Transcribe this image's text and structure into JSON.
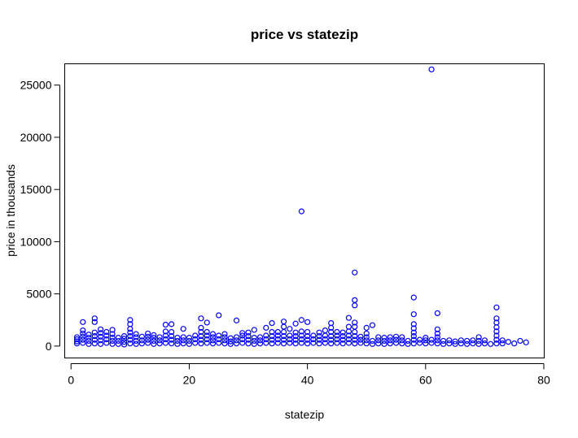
{
  "chart_data": {
    "type": "scatter",
    "title": "price vs statezip",
    "xlabel": "statezip",
    "ylabel": "price in thousands",
    "xlim": [
      -1,
      80
    ],
    "ylim": [
      -1100,
      27000
    ],
    "xticks": [
      0,
      20,
      40,
      60,
      80
    ],
    "yticks": [
      0,
      5000,
      10000,
      15000,
      20000,
      25000
    ],
    "xtick_labels": [
      "0",
      "20",
      "40",
      "60",
      "80"
    ],
    "ytick_labels": [
      "0",
      "5000",
      "10000",
      "15000",
      "20000",
      "25000"
    ],
    "grid": false,
    "legend": "none",
    "point_color": "#0000ff",
    "points": [
      {
        "x": 1,
        "y": 250
      },
      {
        "x": 1,
        "y": 450
      },
      {
        "x": 1,
        "y": 650
      },
      {
        "x": 1,
        "y": 850
      },
      {
        "x": 2,
        "y": 300
      },
      {
        "x": 2,
        "y": 600
      },
      {
        "x": 2,
        "y": 900
      },
      {
        "x": 2,
        "y": 1200
      },
      {
        "x": 2,
        "y": 1500
      },
      {
        "x": 2,
        "y": 2300
      },
      {
        "x": 3,
        "y": 200
      },
      {
        "x": 3,
        "y": 500
      },
      {
        "x": 3,
        "y": 800
      },
      {
        "x": 3,
        "y": 1100
      },
      {
        "x": 4,
        "y": 250
      },
      {
        "x": 4,
        "y": 600
      },
      {
        "x": 4,
        "y": 950
      },
      {
        "x": 4,
        "y": 1300
      },
      {
        "x": 4,
        "y": 2300
      },
      {
        "x": 4,
        "y": 2650
      },
      {
        "x": 5,
        "y": 200
      },
      {
        "x": 5,
        "y": 550
      },
      {
        "x": 5,
        "y": 900
      },
      {
        "x": 5,
        "y": 1250
      },
      {
        "x": 5,
        "y": 1600
      },
      {
        "x": 6,
        "y": 300
      },
      {
        "x": 6,
        "y": 650
      },
      {
        "x": 6,
        "y": 1000
      },
      {
        "x": 6,
        "y": 1350
      },
      {
        "x": 7,
        "y": 200
      },
      {
        "x": 7,
        "y": 500
      },
      {
        "x": 7,
        "y": 800
      },
      {
        "x": 7,
        "y": 1150
      },
      {
        "x": 7,
        "y": 1550
      },
      {
        "x": 8,
        "y": 200
      },
      {
        "x": 8,
        "y": 500
      },
      {
        "x": 8,
        "y": 800
      },
      {
        "x": 9,
        "y": 150
      },
      {
        "x": 9,
        "y": 400
      },
      {
        "x": 9,
        "y": 700
      },
      {
        "x": 9,
        "y": 950
      },
      {
        "x": 10,
        "y": 250
      },
      {
        "x": 10,
        "y": 600
      },
      {
        "x": 10,
        "y": 950
      },
      {
        "x": 10,
        "y": 1300
      },
      {
        "x": 10,
        "y": 1650
      },
      {
        "x": 10,
        "y": 2100
      },
      {
        "x": 10,
        "y": 2500
      },
      {
        "x": 11,
        "y": 200
      },
      {
        "x": 11,
        "y": 500
      },
      {
        "x": 11,
        "y": 850
      },
      {
        "x": 11,
        "y": 1150
      },
      {
        "x": 12,
        "y": 250
      },
      {
        "x": 12,
        "y": 550
      },
      {
        "x": 12,
        "y": 900
      },
      {
        "x": 13,
        "y": 300
      },
      {
        "x": 13,
        "y": 600
      },
      {
        "x": 13,
        "y": 900
      },
      {
        "x": 13,
        "y": 1200
      },
      {
        "x": 14,
        "y": 200
      },
      {
        "x": 14,
        "y": 500
      },
      {
        "x": 14,
        "y": 800
      },
      {
        "x": 14,
        "y": 1050
      },
      {
        "x": 15,
        "y": 250
      },
      {
        "x": 15,
        "y": 550
      },
      {
        "x": 15,
        "y": 850
      },
      {
        "x": 16,
        "y": 300
      },
      {
        "x": 16,
        "y": 650
      },
      {
        "x": 16,
        "y": 1000
      },
      {
        "x": 16,
        "y": 1400
      },
      {
        "x": 16,
        "y": 2050
      },
      {
        "x": 17,
        "y": 250
      },
      {
        "x": 17,
        "y": 600
      },
      {
        "x": 17,
        "y": 950
      },
      {
        "x": 17,
        "y": 1350
      },
      {
        "x": 17,
        "y": 2100
      },
      {
        "x": 18,
        "y": 200
      },
      {
        "x": 18,
        "y": 500
      },
      {
        "x": 18,
        "y": 800
      },
      {
        "x": 19,
        "y": 250
      },
      {
        "x": 19,
        "y": 550
      },
      {
        "x": 19,
        "y": 850
      },
      {
        "x": 19,
        "y": 1650
      },
      {
        "x": 20,
        "y": 200
      },
      {
        "x": 20,
        "y": 500
      },
      {
        "x": 20,
        "y": 800
      },
      {
        "x": 21,
        "y": 300
      },
      {
        "x": 21,
        "y": 650
      },
      {
        "x": 21,
        "y": 1000
      },
      {
        "x": 22,
        "y": 250
      },
      {
        "x": 22,
        "y": 600
      },
      {
        "x": 22,
        "y": 950
      },
      {
        "x": 22,
        "y": 1350
      },
      {
        "x": 22,
        "y": 1750
      },
      {
        "x": 22,
        "y": 2650
      },
      {
        "x": 23,
        "y": 300
      },
      {
        "x": 23,
        "y": 650
      },
      {
        "x": 23,
        "y": 1000
      },
      {
        "x": 23,
        "y": 1350
      },
      {
        "x": 23,
        "y": 2250
      },
      {
        "x": 24,
        "y": 250
      },
      {
        "x": 24,
        "y": 550
      },
      {
        "x": 24,
        "y": 850
      },
      {
        "x": 24,
        "y": 1150
      },
      {
        "x": 25,
        "y": 300
      },
      {
        "x": 25,
        "y": 650
      },
      {
        "x": 25,
        "y": 1000
      },
      {
        "x": 25,
        "y": 2950
      },
      {
        "x": 26,
        "y": 250
      },
      {
        "x": 26,
        "y": 550
      },
      {
        "x": 26,
        "y": 850
      },
      {
        "x": 26,
        "y": 1150
      },
      {
        "x": 27,
        "y": 200
      },
      {
        "x": 27,
        "y": 450
      },
      {
        "x": 27,
        "y": 750
      },
      {
        "x": 28,
        "y": 250
      },
      {
        "x": 28,
        "y": 550
      },
      {
        "x": 28,
        "y": 850
      },
      {
        "x": 28,
        "y": 2450
      },
      {
        "x": 29,
        "y": 300
      },
      {
        "x": 29,
        "y": 650
      },
      {
        "x": 29,
        "y": 1000
      },
      {
        "x": 29,
        "y": 1250
      },
      {
        "x": 30,
        "y": 250
      },
      {
        "x": 30,
        "y": 600
      },
      {
        "x": 30,
        "y": 950
      },
      {
        "x": 30,
        "y": 1300
      },
      {
        "x": 31,
        "y": 200
      },
      {
        "x": 31,
        "y": 500
      },
      {
        "x": 31,
        "y": 800
      },
      {
        "x": 31,
        "y": 1550
      },
      {
        "x": 32,
        "y": 250
      },
      {
        "x": 32,
        "y": 550
      },
      {
        "x": 32,
        "y": 850
      },
      {
        "x": 33,
        "y": 300
      },
      {
        "x": 33,
        "y": 650
      },
      {
        "x": 33,
        "y": 1000
      },
      {
        "x": 33,
        "y": 1750
      },
      {
        "x": 34,
        "y": 250
      },
      {
        "x": 34,
        "y": 600
      },
      {
        "x": 34,
        "y": 950
      },
      {
        "x": 34,
        "y": 1350
      },
      {
        "x": 34,
        "y": 2200
      },
      {
        "x": 35,
        "y": 300
      },
      {
        "x": 35,
        "y": 650
      },
      {
        "x": 35,
        "y": 1000
      },
      {
        "x": 35,
        "y": 1350
      },
      {
        "x": 36,
        "y": 250
      },
      {
        "x": 36,
        "y": 600
      },
      {
        "x": 36,
        "y": 950
      },
      {
        "x": 36,
        "y": 1350
      },
      {
        "x": 36,
        "y": 1850
      },
      {
        "x": 36,
        "y": 2350
      },
      {
        "x": 37,
        "y": 300
      },
      {
        "x": 37,
        "y": 650
      },
      {
        "x": 37,
        "y": 1000
      },
      {
        "x": 37,
        "y": 1650
      },
      {
        "x": 38,
        "y": 250
      },
      {
        "x": 38,
        "y": 600
      },
      {
        "x": 38,
        "y": 950
      },
      {
        "x": 38,
        "y": 1300
      },
      {
        "x": 38,
        "y": 2150
      },
      {
        "x": 39,
        "y": 300
      },
      {
        "x": 39,
        "y": 650
      },
      {
        "x": 39,
        "y": 1000
      },
      {
        "x": 39,
        "y": 1400
      },
      {
        "x": 39,
        "y": 2500
      },
      {
        "x": 39,
        "y": 12900
      },
      {
        "x": 40,
        "y": 250
      },
      {
        "x": 40,
        "y": 600
      },
      {
        "x": 40,
        "y": 950
      },
      {
        "x": 40,
        "y": 1350
      },
      {
        "x": 40,
        "y": 2300
      },
      {
        "x": 41,
        "y": 300
      },
      {
        "x": 41,
        "y": 650
      },
      {
        "x": 41,
        "y": 1000
      },
      {
        "x": 42,
        "y": 250
      },
      {
        "x": 42,
        "y": 600
      },
      {
        "x": 42,
        "y": 950
      },
      {
        "x": 42,
        "y": 1300
      },
      {
        "x": 43,
        "y": 300
      },
      {
        "x": 43,
        "y": 650
      },
      {
        "x": 43,
        "y": 1000
      },
      {
        "x": 43,
        "y": 1500
      },
      {
        "x": 44,
        "y": 250
      },
      {
        "x": 44,
        "y": 600
      },
      {
        "x": 44,
        "y": 950
      },
      {
        "x": 44,
        "y": 1350
      },
      {
        "x": 44,
        "y": 1750
      },
      {
        "x": 44,
        "y": 2200
      },
      {
        "x": 45,
        "y": 300
      },
      {
        "x": 45,
        "y": 650
      },
      {
        "x": 45,
        "y": 1000
      },
      {
        "x": 45,
        "y": 1350
      },
      {
        "x": 46,
        "y": 250
      },
      {
        "x": 46,
        "y": 600
      },
      {
        "x": 46,
        "y": 950
      },
      {
        "x": 46,
        "y": 1300
      },
      {
        "x": 47,
        "y": 300
      },
      {
        "x": 47,
        "y": 650
      },
      {
        "x": 47,
        "y": 1000
      },
      {
        "x": 47,
        "y": 1400
      },
      {
        "x": 47,
        "y": 1850
      },
      {
        "x": 47,
        "y": 2700
      },
      {
        "x": 48,
        "y": 250
      },
      {
        "x": 48,
        "y": 600
      },
      {
        "x": 48,
        "y": 950
      },
      {
        "x": 48,
        "y": 1350
      },
      {
        "x": 48,
        "y": 1850
      },
      {
        "x": 48,
        "y": 2250
      },
      {
        "x": 48,
        "y": 3900
      },
      {
        "x": 48,
        "y": 4400
      },
      {
        "x": 48,
        "y": 7050
      },
      {
        "x": 49,
        "y": 300
      },
      {
        "x": 49,
        "y": 600
      },
      {
        "x": 49,
        "y": 900
      },
      {
        "x": 50,
        "y": 250
      },
      {
        "x": 50,
        "y": 550
      },
      {
        "x": 50,
        "y": 850
      },
      {
        "x": 50,
        "y": 1200
      },
      {
        "x": 50,
        "y": 1750
      },
      {
        "x": 51,
        "y": 200
      },
      {
        "x": 51,
        "y": 500
      },
      {
        "x": 51,
        "y": 2000
      },
      {
        "x": 52,
        "y": 250
      },
      {
        "x": 52,
        "y": 550
      },
      {
        "x": 52,
        "y": 850
      },
      {
        "x": 53,
        "y": 200
      },
      {
        "x": 53,
        "y": 500
      },
      {
        "x": 53,
        "y": 800
      },
      {
        "x": 54,
        "y": 250
      },
      {
        "x": 54,
        "y": 550
      },
      {
        "x": 54,
        "y": 850
      },
      {
        "x": 55,
        "y": 300
      },
      {
        "x": 55,
        "y": 600
      },
      {
        "x": 55,
        "y": 900
      },
      {
        "x": 56,
        "y": 250
      },
      {
        "x": 56,
        "y": 550
      },
      {
        "x": 56,
        "y": 850
      },
      {
        "x": 57,
        "y": 200
      },
      {
        "x": 57,
        "y": 500
      },
      {
        "x": 58,
        "y": 250
      },
      {
        "x": 58,
        "y": 600
      },
      {
        "x": 58,
        "y": 950
      },
      {
        "x": 58,
        "y": 1300
      },
      {
        "x": 58,
        "y": 1700
      },
      {
        "x": 58,
        "y": 2100
      },
      {
        "x": 58,
        "y": 3050
      },
      {
        "x": 58,
        "y": 4650
      },
      {
        "x": 59,
        "y": 300
      },
      {
        "x": 59,
        "y": 600
      },
      {
        "x": 60,
        "y": 250
      },
      {
        "x": 60,
        "y": 550
      },
      {
        "x": 60,
        "y": 800
      },
      {
        "x": 61,
        "y": 300
      },
      {
        "x": 61,
        "y": 600
      },
      {
        "x": 61,
        "y": 26500
      },
      {
        "x": 62,
        "y": 250
      },
      {
        "x": 62,
        "y": 550
      },
      {
        "x": 62,
        "y": 850
      },
      {
        "x": 62,
        "y": 1200
      },
      {
        "x": 62,
        "y": 1600
      },
      {
        "x": 62,
        "y": 3150
      },
      {
        "x": 63,
        "y": 200
      },
      {
        "x": 63,
        "y": 500
      },
      {
        "x": 64,
        "y": 250
      },
      {
        "x": 64,
        "y": 550
      },
      {
        "x": 65,
        "y": 200
      },
      {
        "x": 65,
        "y": 450
      },
      {
        "x": 66,
        "y": 250
      },
      {
        "x": 66,
        "y": 550
      },
      {
        "x": 67,
        "y": 200
      },
      {
        "x": 67,
        "y": 500
      },
      {
        "x": 68,
        "y": 250
      },
      {
        "x": 68,
        "y": 550
      },
      {
        "x": 69,
        "y": 200
      },
      {
        "x": 69,
        "y": 500
      },
      {
        "x": 69,
        "y": 850
      },
      {
        "x": 70,
        "y": 250
      },
      {
        "x": 70,
        "y": 550
      },
      {
        "x": 71,
        "y": 200
      },
      {
        "x": 72,
        "y": 250
      },
      {
        "x": 72,
        "y": 600
      },
      {
        "x": 72,
        "y": 1000
      },
      {
        "x": 72,
        "y": 1400
      },
      {
        "x": 72,
        "y": 1800
      },
      {
        "x": 72,
        "y": 2250
      },
      {
        "x": 72,
        "y": 2650
      },
      {
        "x": 72,
        "y": 3700
      },
      {
        "x": 73,
        "y": 250
      },
      {
        "x": 73,
        "y": 550
      },
      {
        "x": 74,
        "y": 400
      },
      {
        "x": 75,
        "y": 250
      },
      {
        "x": 76,
        "y": 500
      },
      {
        "x": 77,
        "y": 350
      }
    ]
  }
}
